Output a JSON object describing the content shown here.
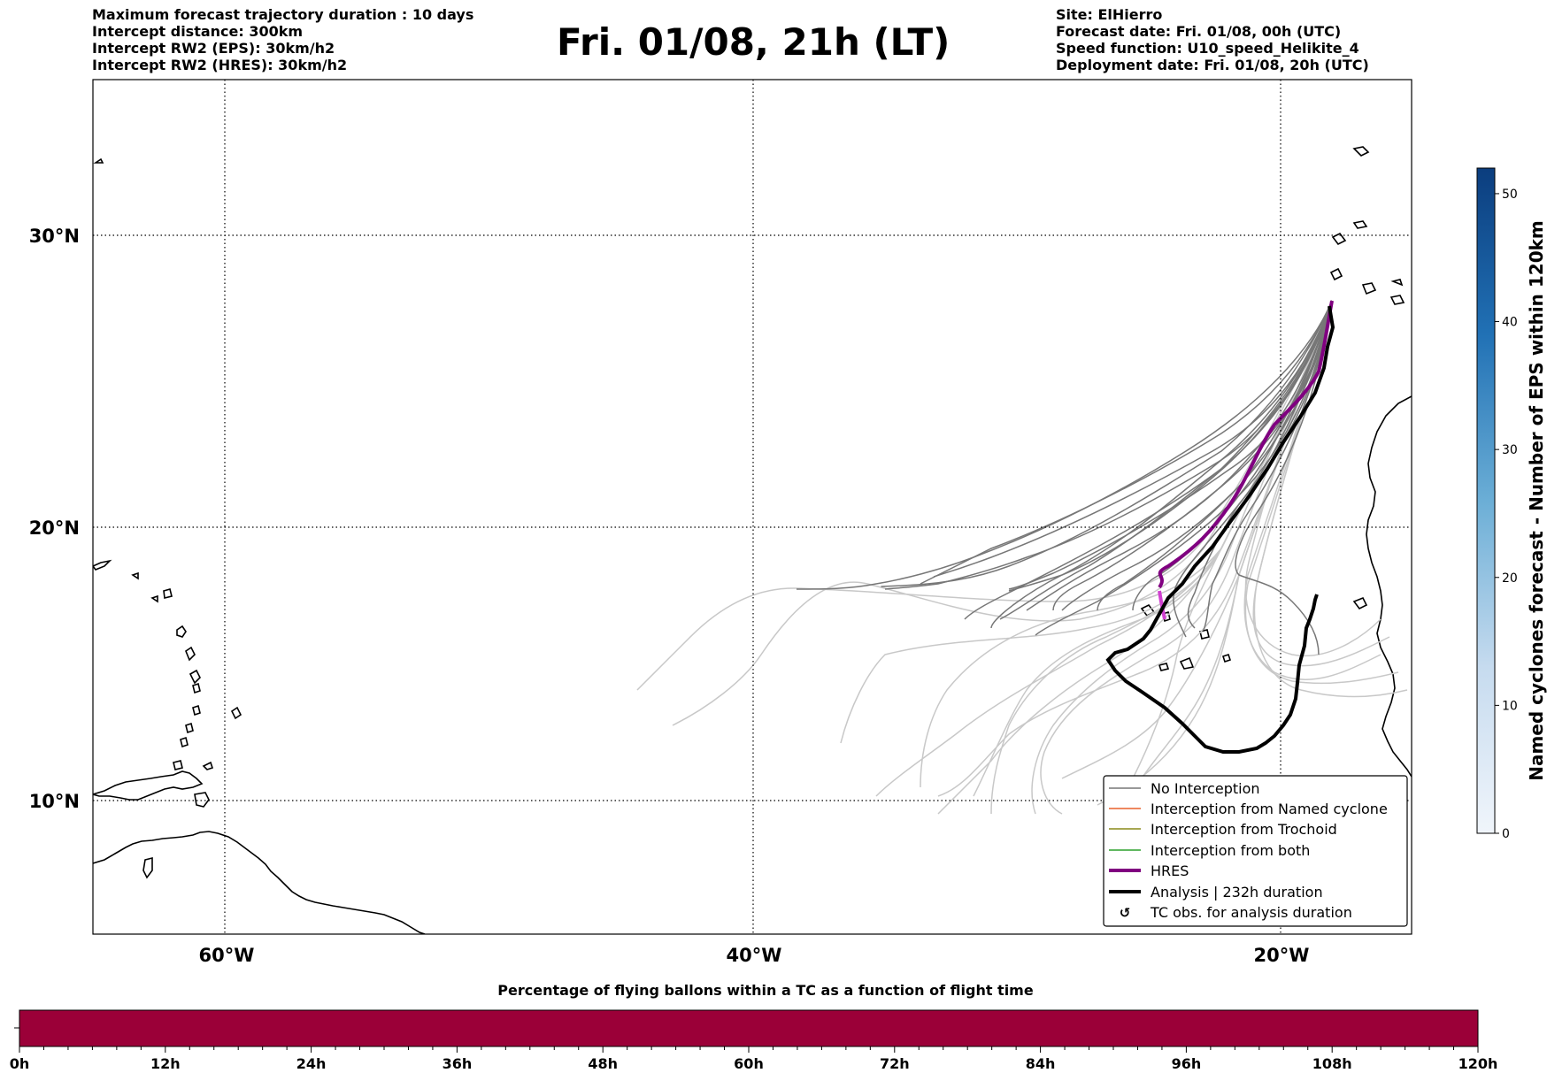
{
  "header_left": [
    "Maximum forecast trajectory duration : 10 days",
    "Intercept distance: 300km",
    "Intercept RW2 (EPS):  30km/h2",
    "Intercept RW2 (HRES): 30km/h2"
  ],
  "header_right": [
    "Site: ElHierro",
    "Forecast date: Fri. 01/08, 00h (UTC)",
    "Speed function: U10_speed_Helikite_4",
    "Deployment date: Fri. 01/08, 20h (UTC)"
  ],
  "title": "Fri. 01/08, 21h (LT)",
  "map": {
    "lon_labels": [
      "60°W",
      "40°W",
      "20°W"
    ],
    "lat_labels": [
      "30°N",
      "20°N",
      "10°N"
    ],
    "gridlines": "dotted",
    "extent": {
      "lon": [
        -65,
        -15
      ],
      "lat": [
        5.3,
        34.6
      ]
    }
  },
  "legend": {
    "placement": "lower-right",
    "entries": [
      {
        "label": "No Interception",
        "color": "#777777",
        "style": "thin-line"
      },
      {
        "label": "Interception from Named cyclone",
        "color": "#e8602c",
        "style": "thin-line"
      },
      {
        "label": "Interception from Trochoid",
        "color": "#8a8a1a",
        "style": "thin-line"
      },
      {
        "label": "Interception from both",
        "color": "#2ca02c",
        "style": "thin-line"
      },
      {
        "label": "HRES",
        "color": "#800080",
        "style": "thick-line"
      },
      {
        "label": "Analysis | 232h duration",
        "color": "#000000",
        "style": "thick-line"
      },
      {
        "label": "TC obs. for analysis duration",
        "color": "#000000",
        "style": "cyclone-icon"
      }
    ]
  },
  "colorbar": {
    "title": "Named cyclones forecast - Number of EPS within 120km",
    "ticks": [
      "0",
      "10",
      "20",
      "30",
      "40",
      "50"
    ],
    "min": 0,
    "max": 52,
    "colormap": "Blues",
    "color_low": "#f0f5fb",
    "color_high": "#0b3d7e"
  },
  "pct_bar": {
    "title": "Percentage of flying ballons within a TC as a function of flight time",
    "ticks": [
      "0h",
      "12h",
      "24h",
      "36h",
      "48h",
      "60h",
      "72h",
      "84h",
      "96h",
      "108h",
      "120h"
    ],
    "fill_color": "#9b0038",
    "values_percent_every_12h": [
      0,
      0,
      0,
      0,
      0,
      0,
      0,
      0,
      0,
      0,
      0
    ]
  },
  "colors": {
    "eps_no_interception": "#777777",
    "eps_secondary": "#c8c8c8",
    "hres": "#800080",
    "hres_tail": "#d040d0",
    "analysis": "#000000"
  }
}
